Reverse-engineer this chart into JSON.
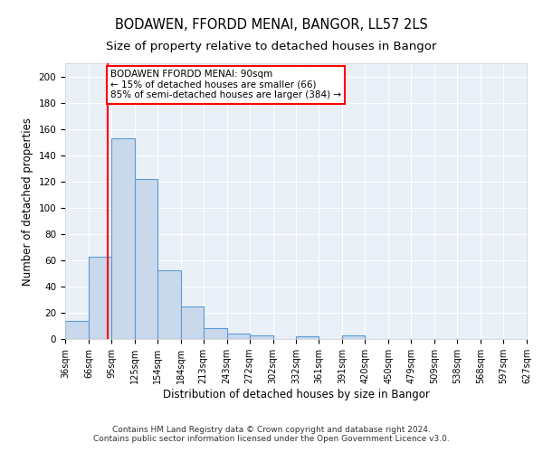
{
  "title1": "BODAWEN, FFORDD MENAI, BANGOR, LL57 2LS",
  "title2": "Size of property relative to detached houses in Bangor",
  "xlabel": "Distribution of detached houses by size in Bangor",
  "ylabel": "Number of detached properties",
  "bins": [
    "36sqm",
    "66sqm",
    "95sqm",
    "125sqm",
    "154sqm",
    "184sqm",
    "213sqm",
    "243sqm",
    "272sqm",
    "302sqm",
    "332sqm",
    "361sqm",
    "391sqm",
    "420sqm",
    "450sqm",
    "479sqm",
    "509sqm",
    "538sqm",
    "568sqm",
    "597sqm",
    "627sqm"
  ],
  "hist_counts": [
    14,
    63,
    153,
    122,
    52,
    25,
    8,
    4,
    3,
    0,
    2,
    0,
    3,
    0,
    0,
    0,
    0,
    0,
    0,
    0
  ],
  "bar_color": "#c9d9eb",
  "bar_edge_color": "#5b9bd5",
  "vline_x": 90,
  "vline_color": "red",
  "annotation_text": "BODAWEN FFORDD MENAI: 90sqm\n← 15% of detached houses are smaller (66)\n85% of semi-detached houses are larger (384) →",
  "annotation_box_color": "white",
  "annotation_box_edge": "red",
  "ylim": [
    0,
    210
  ],
  "yticks": [
    0,
    20,
    40,
    60,
    80,
    100,
    120,
    140,
    160,
    180,
    200
  ],
  "bg_color": "#eaf0f8",
  "footer": "Contains HM Land Registry data © Crown copyright and database right 2024.\nContains public sector information licensed under the Open Government Licence v3.0.",
  "title1_fontsize": 10.5,
  "title2_fontsize": 9.5,
  "xlabel_fontsize": 8.5,
  "ylabel_fontsize": 8.5,
  "annotation_fontsize": 7.5,
  "tick_fontsize": 7,
  "ytick_fontsize": 7.5
}
